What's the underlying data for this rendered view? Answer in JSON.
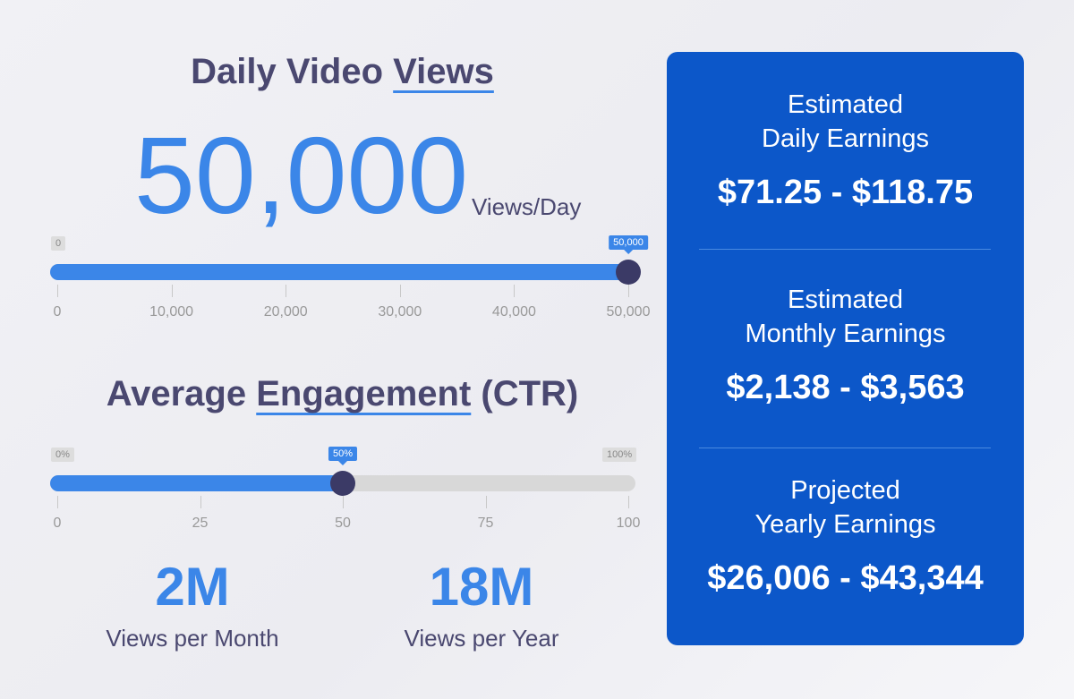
{
  "views": {
    "title_prefix": "Daily Video",
    "title_underlined": "Views",
    "value": "50,000",
    "unit": "Views/Day",
    "slider": {
      "min_label": "0",
      "tooltip": "50,000",
      "fraction": 1.0,
      "ticks": [
        "0",
        "10,000",
        "20,000",
        "30,000",
        "40,000",
        "50,000"
      ]
    }
  },
  "engagement": {
    "title_prefix": "Average",
    "title_underlined": "Engagement",
    "title_suffix": "(CTR)",
    "slider": {
      "min_label": "0%",
      "max_label": "100%",
      "tooltip": "50%",
      "fraction": 0.5,
      "ticks": [
        "0",
        "25",
        "50",
        "75",
        "100"
      ]
    }
  },
  "stats": {
    "month_value": "2M",
    "month_label": "Views per Month",
    "year_value": "18M",
    "year_label": "Views per Year"
  },
  "earnings": [
    {
      "line1": "Estimated",
      "line2": "Daily Earnings",
      "amount": "$71.25 - $118.75"
    },
    {
      "line1": "Estimated",
      "line2": "Monthly Earnings",
      "amount": "$2,138 - $3,563"
    },
    {
      "line1": "Projected",
      "line2": "Yearly Earnings",
      "amount": "$26,006 - $43,344"
    }
  ],
  "colors": {
    "accent": "#3b86e8",
    "panel": "#0c57c9",
    "heading": "#4a4870",
    "thumb": "#3b3a66"
  }
}
